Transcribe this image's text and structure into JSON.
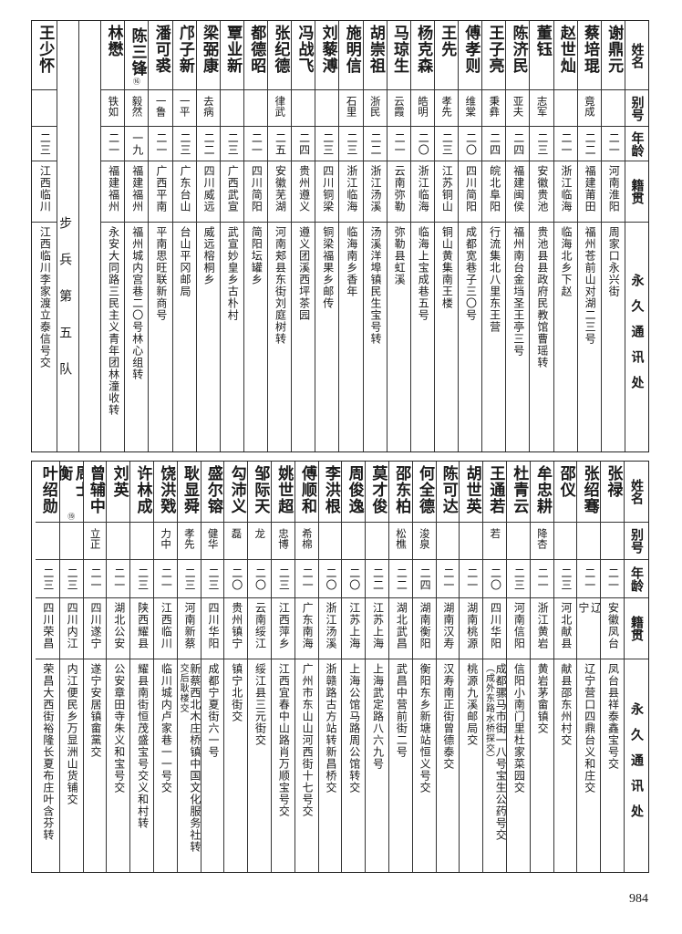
{
  "headers": {
    "name": "姓名",
    "alias": "别号",
    "age": "年龄",
    "native": "籍贯",
    "address": "永久通讯处"
  },
  "top": {
    "people": [
      {
        "name": "谢鼎元",
        "alias": "",
        "age": "二一",
        "native": "河南淮阳",
        "address": "周家口永兴街"
      },
      {
        "name": "蔡培琨",
        "alias": "竟成",
        "age": "二二",
        "native": "福建莆田",
        "address": "福州苍前山对湖二三号"
      },
      {
        "name": "赵世灿",
        "alias": "",
        "age": "二一",
        "native": "浙江临海",
        "address": "临海北乡下赵"
      },
      {
        "name": "董钰",
        "alias": "志军",
        "age": "二三",
        "native": "安徽贵池",
        "address": "贵池县县政府民教馆曹瑶转"
      },
      {
        "name": "陈济民",
        "alias": "亚夫",
        "age": "二四",
        "native": "福建闽侯",
        "address": "福州南台金垱圣王亭三号"
      },
      {
        "name": "王子亮",
        "alias": "秉彝",
        "age": "二四",
        "native": "皖北阜阳",
        "address": "行流集北八里东王营"
      },
      {
        "name": "傅孝则",
        "alias": "维棠",
        "age": "二〇",
        "native": "四川简阳",
        "address": "成都宽巷子三〇号"
      },
      {
        "name": "王先",
        "alias": "孝先",
        "age": "二三",
        "native": "江苏铜山",
        "address": "铜山黄集南王楼"
      },
      {
        "name": "杨克森",
        "alias": "皓明",
        "age": "二〇",
        "native": "浙江临海",
        "address": "临海上宝成巷五号"
      },
      {
        "name": "马琼生",
        "alias": "云霞",
        "age": "二一",
        "native": "云南弥勒",
        "address": "弥勒县虹溪"
      },
      {
        "name": "胡崇祖",
        "alias": "浙民",
        "age": "二二",
        "native": "浙江汤溪",
        "address": "汤溪洋埠镇民生宝号转"
      },
      {
        "name": "施明信",
        "alias": "石里",
        "age": "二三",
        "native": "浙江临海",
        "address": "临海南乡香年"
      },
      {
        "name": "刘藜溥",
        "alias": "",
        "age": "二三",
        "native": "四川铜梁",
        "address": "铜梁福果乡邮传"
      },
      {
        "name": "冯战飞",
        "alias": "",
        "age": "二四",
        "native": "贵州遵义",
        "address": "遵义团溪西坪茶园"
      },
      {
        "name": "张纪德",
        "alias": "律武",
        "age": "二五",
        "native": "安徽芜湖",
        "address": "河南郏县东街刘庭树转"
      },
      {
        "name": "都德昭",
        "alias": "",
        "age": "二一",
        "native": "四川简阳",
        "address": "简阳坛罐乡"
      },
      {
        "name": "覃业新",
        "alias": "",
        "age": "二三",
        "native": "广西武宣",
        "address": "武宣妙皇乡古朴村"
      },
      {
        "name": "梁弼康",
        "alias": "去病",
        "age": "二二",
        "native": "四川威远",
        "address": "威远榕桐乡"
      },
      {
        "name": "邝子新",
        "alias": "一平",
        "age": "二三",
        "native": "广东台山",
        "address": "台山平冈邮局"
      },
      {
        "name": "潘可裘",
        "alias": "一鲁",
        "age": "二一",
        "native": "广西平南",
        "address": "平南思旺联新商号"
      },
      {
        "name": "陈三锋",
        "note": "⑯",
        "alias": "毅然",
        "age": "一九",
        "native": "福建福州",
        "address": "福州城内宫巷二〇号林心组转"
      },
      {
        "name": "林懋",
        "alias": "铁如",
        "age": "二一",
        "native": "福建福州",
        "address": "永安大同路三民主义青年团林潼收转"
      }
    ],
    "section_label": "步兵第五队",
    "after_section": [
      {
        "name": "王少怀",
        "alias": "",
        "age": "二三",
        "native": "江西临川",
        "address": "江西临川李家渡立泰信号交"
      }
    ]
  },
  "bottom": {
    "people": [
      {
        "name": "张禄",
        "alias": "",
        "age": "二一",
        "native": "安徽凤台",
        "address": "凤台县祥泰鑫宝号交"
      },
      {
        "name": "张绍骞",
        "alias": "",
        "age": "二一",
        "native": "辽宁",
        "address": "辽宁营口四鼎台义和庄交"
      },
      {
        "name": "邵仪",
        "alias": "",
        "age": "二三",
        "native": "河北献县",
        "address": "献县邵东州村交"
      },
      {
        "name": "牟忠耕",
        "alias": "降杏",
        "age": "二一",
        "native": "浙江黄岩",
        "address": "黄岩茅畲镇交"
      },
      {
        "name": "杜青云",
        "alias": "",
        "age": "二三",
        "native": "河南信阳",
        "address": "信阳小南门里杜家菜园交"
      },
      {
        "name": "王通若",
        "alias": "若",
        "age": "二〇",
        "native": "四川华阳",
        "address": "成都骡马市街一八号宝生公药号交",
        "address_note": "（成外东路水桥探交）"
      },
      {
        "name": "胡世英",
        "alias": "",
        "age": "二一",
        "native": "湖南桃源",
        "address": "桃源九溪邮局交"
      },
      {
        "name": "陈可达",
        "alias": "",
        "age": "二一",
        "native": "湖南汉寿",
        "address": "汉寿南正街曾德泰交"
      },
      {
        "name": "何全德",
        "alias": "浚泉",
        "age": "二四",
        "native": "湖南衡阳",
        "address": "衡阳东乡新塘站恒义号交"
      },
      {
        "name": "邵东柏",
        "alias": "松樵",
        "age": "二二",
        "native": "湖北武昌",
        "address": "武昌中营前街二号"
      },
      {
        "name": "莫才俊",
        "alias": "",
        "age": "二二",
        "native": "江苏上海",
        "address": "上海武定路八六九号"
      },
      {
        "name": "周俊逸",
        "alias": "",
        "age": "二〇",
        "native": "江苏上海",
        "address": "上海公馆马路周公馆转交"
      },
      {
        "name": "李洪根",
        "alias": "",
        "age": "二〇",
        "native": "浙江汤溪",
        "address": "浙赣路古方站转新昌桥交"
      },
      {
        "name": "傅顺和",
        "alias": "希棉",
        "age": "二一",
        "native": "广东南海",
        "address": "广州市东山山河西街十七号交"
      },
      {
        "name": "姚世超",
        "alias": "忠博",
        "age": "二三",
        "native": "江西萍乡",
        "address": "江西宜春中山路肖万顺宝号交"
      },
      {
        "name": "邹际天",
        "alias": "龙",
        "age": "二〇",
        "native": "云南绥江",
        "address": "绥江县三元街交"
      },
      {
        "name": "勾沛义",
        "alias": "磊",
        "age": "二〇",
        "native": "贵州镇宁",
        "address": "镇宁北街交"
      },
      {
        "name": "盛尔镕",
        "alias": "健华",
        "age": "二三",
        "native": "四川华阳",
        "address": "成都宁夏街六一号"
      },
      {
        "name": "耿显舜",
        "alias": "孝先",
        "age": "二三",
        "native": "河南新蔡",
        "address": "新蔡西北木庄桥镇中国文化服务社转",
        "address_note": "交后耿楼交"
      },
      {
        "name": "饶洪戣",
        "alias": "力中",
        "age": "二一",
        "native": "江西临川",
        "address": "临川城内卢家巷一一号交"
      },
      {
        "name": "许林成",
        "alias": "",
        "age": "二三",
        "native": "陕西耀县",
        "address": "耀县南街恒茂盛宝号交义和村转"
      },
      {
        "name": "刘英",
        "alias": "",
        "age": "二一",
        "native": "湖北公安",
        "address": "公安章田寺朱义和宝号交"
      },
      {
        "name": "曾辅中",
        "alias": "立正",
        "age": "二一",
        "native": "四川遂宁",
        "address": "遂宁安居镇畲黨交"
      },
      {
        "name": "周士衡",
        "note": "⑲",
        "alias": "",
        "age": "二三",
        "native": "四川内江",
        "address": "内江便民乡万显洲山货铺交"
      },
      {
        "name": "叶绍勋",
        "alias": "",
        "age": "二三",
        "native": "四川荣昌",
        "address": "荣昌大西街裕隆长夏布庄叶含芬转"
      }
    ]
  },
  "page_number": "984"
}
